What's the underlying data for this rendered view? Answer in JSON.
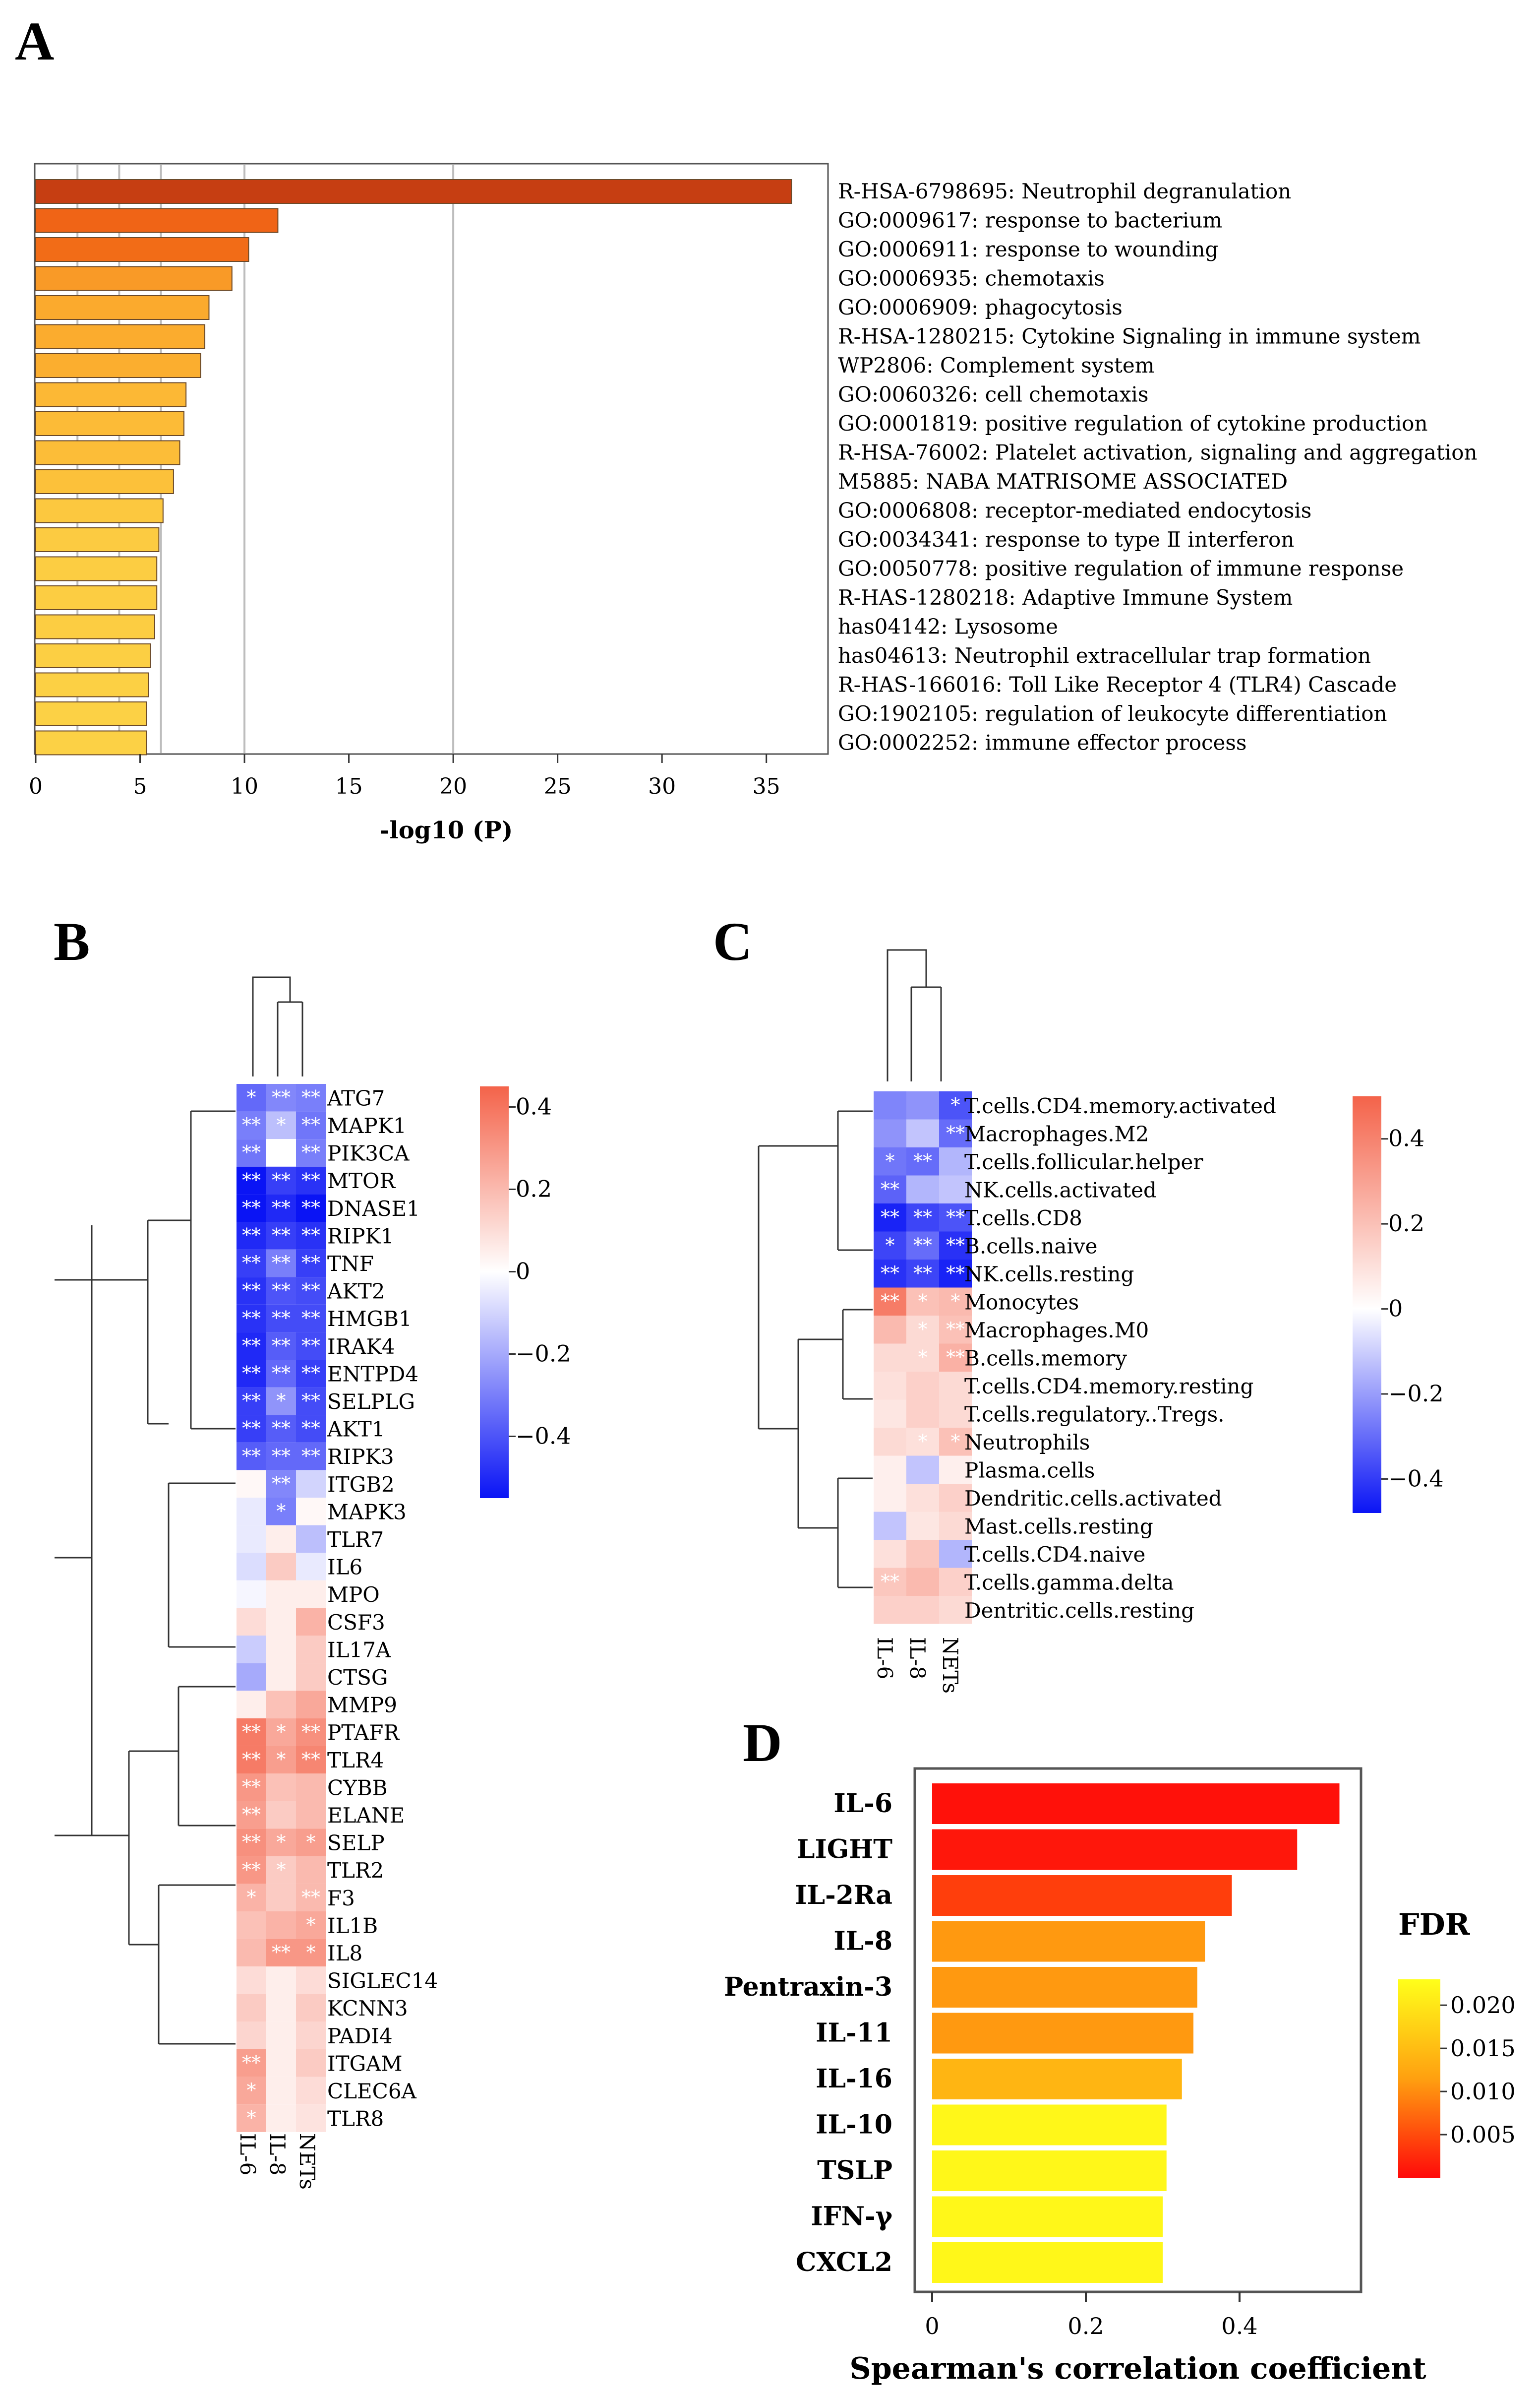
{
  "panel_labels": {
    "a": "A",
    "b": "B",
    "c": "C",
    "d": "D"
  },
  "chart_data": [
    {
      "id": "A",
      "type": "bar",
      "orientation": "horizontal",
      "categories": [
        "R-HSA-6798695: Neutrophil degranulation",
        "GO:0009617: response to bacterium",
        "GO:0006911: response to wounding",
        "GO:0006935: chemotaxis",
        "GO:0006909: phagocytosis",
        "R-HSA-1280215: Cytokine Signaling in immune system",
        "WP2806: Complement system",
        "GO:0060326: cell chemotaxis",
        "GO:0001819: positive regulation of cytokine production",
        "R-HSA-76002: Platelet activation, signaling and aggregation",
        "M5885: NABA MATRISOME ASSOCIATED",
        "GO:0006808: receptor-mediated endocytosis",
        "GO:0034341: response to type Ⅱ interferon",
        "GO:0050778: positive regulation of immune response",
        "R-HAS-1280218: Adaptive Immune System",
        "has04142: Lysosome",
        "has04613: Neutrophil extracellular trap formation",
        "R-HAS-166016: Toll Like Receptor 4 (TLR4) Cascade",
        "GO:1902105: regulation of leukocyte differentiation",
        "GO:0002252: immune effector process"
      ],
      "values": [
        36.2,
        11.6,
        10.2,
        9.4,
        8.3,
        8.1,
        7.9,
        7.2,
        7.1,
        6.9,
        6.6,
        6.1,
        5.9,
        5.8,
        5.8,
        5.7,
        5.5,
        5.4,
        5.3,
        5.3
      ],
      "xlabel": "-log10 (P)",
      "xlim": [
        0,
        38
      ],
      "xticks": [
        0,
        5,
        10,
        15,
        20,
        25,
        30,
        35
      ],
      "gridlines": [
        2,
        4,
        6,
        10,
        20
      ],
      "colors": [
        "#c63e12",
        "#f06416",
        "#f26c17",
        "#f99a27",
        "#fbaa2d",
        "#fbac2e",
        "#fbae2f",
        "#fcb835",
        "#fcbb37",
        "#fcbd38",
        "#fcc13a",
        "#fcc83f",
        "#fccb41",
        "#fccd42",
        "#fccd42",
        "#fccd42",
        "#fccf43",
        "#fcd044",
        "#fcd145",
        "#fcd145"
      ]
    },
    {
      "id": "B",
      "type": "heatmap",
      "columns": [
        "IL-6",
        "IL-8",
        "NETs"
      ],
      "rows": [
        "ATG7",
        "MAPK1",
        "PIK3CA",
        "MTOR",
        "DNASE1",
        "RIPK1",
        "TNF",
        "AKT2",
        "HMGB1",
        "IRAK4",
        "ENTPD4",
        "SELPLG",
        "AKT1",
        "RIPK3",
        "ITGB2",
        "MAPK3",
        "TLR7",
        "IL6",
        "MPO",
        "CSF3",
        "IL17A",
        "CTSG",
        "MMP9",
        "PTAFR",
        "TLR4",
        "CYBB",
        "ELANE",
        "SELP",
        "TLR2",
        "F3",
        "IL1B",
        "IL8",
        "SIGLEC14",
        "KCNN3",
        "PADI4",
        "ITGAM",
        "CLEC6A",
        "TLR8"
      ],
      "values": [
        [
          -0.35,
          -0.28,
          -0.3
        ],
        [
          -0.3,
          -0.15,
          -0.32
        ],
        [
          -0.32,
          0.0,
          -0.3
        ],
        [
          -0.55,
          -0.45,
          -0.48
        ],
        [
          -0.55,
          -0.5,
          -0.58
        ],
        [
          -0.5,
          -0.45,
          -0.48
        ],
        [
          -0.45,
          -0.3,
          -0.45
        ],
        [
          -0.48,
          -0.4,
          -0.42
        ],
        [
          -0.48,
          -0.42,
          -0.42
        ],
        [
          -0.5,
          -0.38,
          -0.42
        ],
        [
          -0.5,
          -0.35,
          -0.45
        ],
        [
          -0.45,
          -0.25,
          -0.42
        ],
        [
          -0.45,
          -0.38,
          -0.42
        ],
        [
          -0.38,
          -0.35,
          -0.35
        ],
        [
          0.02,
          -0.28,
          -0.1
        ],
        [
          -0.05,
          -0.3,
          0.02
        ],
        [
          -0.05,
          0.05,
          -0.15
        ],
        [
          -0.08,
          0.15,
          -0.05
        ],
        [
          -0.02,
          0.05,
          0.05
        ],
        [
          0.1,
          0.05,
          0.22
        ],
        [
          -0.12,
          0.05,
          0.15
        ],
        [
          -0.2,
          0.05,
          0.15
        ],
        [
          0.05,
          0.18,
          0.25
        ],
        [
          0.38,
          0.25,
          0.32
        ],
        [
          0.38,
          0.28,
          0.35
        ],
        [
          0.3,
          0.18,
          0.2
        ],
        [
          0.28,
          0.15,
          0.2
        ],
        [
          0.32,
          0.25,
          0.28
        ],
        [
          0.3,
          0.15,
          0.2
        ],
        [
          0.22,
          0.15,
          0.2
        ],
        [
          0.18,
          0.22,
          0.25
        ],
        [
          0.2,
          0.3,
          0.3
        ],
        [
          0.1,
          0.05,
          0.1
        ],
        [
          0.15,
          0.05,
          0.15
        ],
        [
          0.12,
          0.05,
          0.12
        ],
        [
          0.28,
          0.05,
          0.15
        ],
        [
          0.25,
          0.05,
          0.1
        ],
        [
          0.22,
          0.05,
          0.08
        ]
      ],
      "significance": [
        [
          "*",
          "**",
          "**"
        ],
        [
          "**",
          "*",
          "**"
        ],
        [
          "**",
          "",
          "**"
        ],
        [
          "**",
          "**",
          "**"
        ],
        [
          "**",
          "**",
          "**"
        ],
        [
          "**",
          "**",
          "**"
        ],
        [
          "**",
          "**",
          "**"
        ],
        [
          "**",
          "**",
          "**"
        ],
        [
          "**",
          "**",
          "**"
        ],
        [
          "**",
          "**",
          "**"
        ],
        [
          "**",
          "**",
          "**"
        ],
        [
          "**",
          "*",
          "**"
        ],
        [
          "**",
          "**",
          "**"
        ],
        [
          "**",
          "**",
          "**"
        ],
        [
          "",
          "**",
          ""
        ],
        [
          "",
          "*",
          ""
        ],
        [
          "",
          "",
          ""
        ],
        [
          "",
          "",
          ""
        ],
        [
          "",
          "",
          ""
        ],
        [
          "",
          "",
          ""
        ],
        [
          "",
          "",
          ""
        ],
        [
          "",
          "",
          ""
        ],
        [
          "",
          "",
          ""
        ],
        [
          "**",
          "*",
          "**"
        ],
        [
          "**",
          "*",
          "**"
        ],
        [
          "**",
          "",
          ""
        ],
        [
          "**",
          "",
          ""
        ],
        [
          "**",
          "*",
          "*"
        ],
        [
          "**",
          "*",
          ""
        ],
        [
          "*",
          "",
          "**"
        ],
        [
          "",
          "",
          "*"
        ],
        [
          "",
          "**",
          "*"
        ],
        [
          "",
          "",
          ""
        ],
        [
          "",
          "",
          ""
        ],
        [
          "",
          "",
          ""
        ],
        [
          "**",
          "",
          ""
        ],
        [
          "*",
          "",
          ""
        ],
        [
          "*",
          "",
          ""
        ]
      ],
      "colorbar": {
        "min": -0.55,
        "max": 0.45,
        "ticks": [
          0.4,
          0.2,
          0,
          -0.2,
          -0.4
        ],
        "tick_labels": [
          "0.4",
          "0.2",
          "0",
          "−0.2",
          "−0.4"
        ]
      }
    },
    {
      "id": "C",
      "type": "heatmap",
      "columns": [
        "IL-6",
        "IL-8",
        "NETs"
      ],
      "rows": [
        "T.cells.CD4.memory.activated",
        "Macrophages.M2",
        "T.cells.follicular.helper",
        "NK.cells.activated",
        "T.cells.CD8",
        "B.cells.naive",
        "NK.cells.resting",
        "Monocytes",
        "Macrophages.M0",
        "B.cells.memory",
        "T.cells.CD4.memory.resting",
        "T.cells.regulatory..Tregs.",
        "Neutrophils",
        "Plasma.cells",
        "Dendritic.cells.activated",
        "Mast.cells.resting",
        "T.cells.CD4.naive",
        "T.cells.gamma.delta",
        "Dentritic.cells.resting"
      ],
      "values": [
        [
          -0.25,
          -0.22,
          -0.35
        ],
        [
          -0.22,
          -0.12,
          -0.3
        ],
        [
          -0.28,
          -0.3,
          -0.15
        ],
        [
          -0.32,
          -0.15,
          -0.12
        ],
        [
          -0.45,
          -0.38,
          -0.35
        ],
        [
          -0.38,
          -0.3,
          -0.42
        ],
        [
          -0.42,
          -0.38,
          -0.45
        ],
        [
          0.42,
          0.2,
          0.22
        ],
        [
          0.22,
          0.12,
          0.2
        ],
        [
          0.12,
          0.12,
          0.25
        ],
        [
          0.1,
          0.15,
          0.12
        ],
        [
          0.08,
          0.15,
          0.12
        ],
        [
          0.12,
          0.1,
          0.2
        ],
        [
          0.05,
          -0.12,
          0.05
        ],
        [
          0.05,
          0.1,
          0.15
        ],
        [
          -0.12,
          0.08,
          0.12
        ],
        [
          0.1,
          0.18,
          -0.15
        ],
        [
          0.18,
          0.22,
          0.15
        ],
        [
          0.15,
          0.15,
          0.12
        ]
      ],
      "significance": [
        [
          "",
          "",
          "*"
        ],
        [
          "",
          "",
          "**"
        ],
        [
          "*",
          "**",
          ""
        ],
        [
          "**",
          "",
          ""
        ],
        [
          "**",
          "**",
          "**"
        ],
        [
          "*",
          "**",
          "**"
        ],
        [
          "**",
          "**",
          "**"
        ],
        [
          "**",
          "*",
          "*"
        ],
        [
          "",
          "*",
          "**"
        ],
        [
          "",
          "*",
          "**"
        ],
        [
          "",
          "",
          ""
        ],
        [
          "",
          "",
          ""
        ],
        [
          "",
          "*",
          "*"
        ],
        [
          "",
          "",
          ""
        ],
        [
          "",
          "",
          ""
        ],
        [
          "",
          "",
          ""
        ],
        [
          "",
          "",
          ""
        ],
        [
          "**",
          "",
          ""
        ],
        [
          "",
          "",
          ""
        ]
      ],
      "colorbar": {
        "min": -0.48,
        "max": 0.5,
        "ticks": [
          0.4,
          0.2,
          0,
          -0.2,
          -0.4
        ],
        "tick_labels": [
          "0.4",
          "0.2",
          "0",
          "−0.2",
          "−0.4"
        ]
      }
    },
    {
      "id": "D",
      "type": "bar",
      "orientation": "horizontal",
      "categories": [
        "IL-6",
        "LIGHT",
        "IL-2Ra",
        "IL-8",
        "Pentraxin-3",
        "IL-11",
        "IL-16",
        "IL-10",
        "TSLP",
        "IFN-γ",
        "CXCL2"
      ],
      "values": [
        0.53,
        0.475,
        0.39,
        0.355,
        0.345,
        0.34,
        0.325,
        0.305,
        0.305,
        0.3,
        0.3
      ],
      "fdr": [
        0.0005,
        0.001,
        0.004,
        0.011,
        0.011,
        0.011,
        0.014,
        0.022,
        0.022,
        0.022,
        0.022
      ],
      "xlabel": "Spearman's correlation coefficient",
      "xlim": [
        0,
        0.55
      ],
      "xticks": [
        0,
        0.2,
        0.4
      ],
      "xtick_labels": [
        "0",
        "0.2",
        "0.4"
      ],
      "legend": {
        "title": "FDR",
        "min": 0,
        "max": 0.023,
        "ticks": [
          0.02,
          0.015,
          0.01,
          0.005
        ],
        "tick_labels": [
          "0.020",
          "0.015",
          "0.010",
          "0.005"
        ]
      }
    }
  ]
}
